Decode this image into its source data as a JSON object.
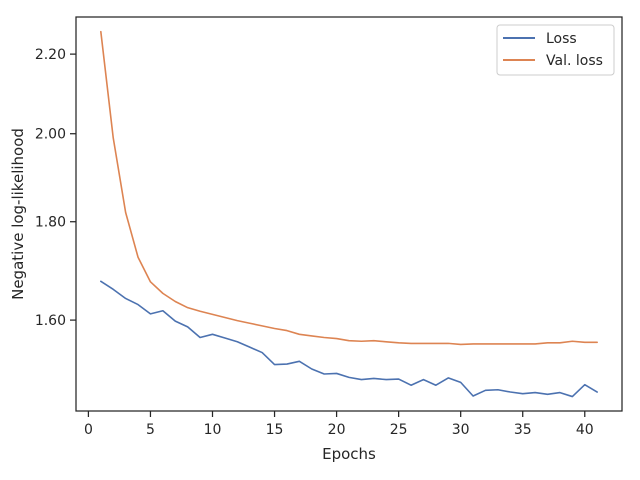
{
  "chart_data": {
    "type": "line",
    "title": "",
    "xlabel": "Epochs",
    "ylabel": "Negative log-likelihood",
    "yscale": "log",
    "xlim": [
      -1,
      43
    ],
    "ylim": [
      1.435,
      2.3
    ],
    "x_ticks": [
      0,
      5,
      10,
      15,
      20,
      25,
      30,
      35,
      40
    ],
    "x_tick_labels": [
      "0",
      "5",
      "10",
      "15",
      "20",
      "25",
      "30",
      "35",
      "40"
    ],
    "y_ticks": [
      1.6,
      1.8,
      2.0,
      2.2
    ],
    "y_tick_labels": [
      "1.60",
      "1.80",
      "2.00",
      "2.20"
    ],
    "grid": false,
    "legend_position": "top-right",
    "x": [
      1,
      2,
      3,
      4,
      5,
      6,
      7,
      8,
      9,
      10,
      11,
      12,
      13,
      14,
      15,
      16,
      17,
      18,
      19,
      20,
      21,
      22,
      23,
      24,
      25,
      26,
      27,
      28,
      29,
      30,
      31,
      32,
      33,
      34,
      35,
      36,
      37,
      38,
      39,
      40,
      41
    ],
    "series": [
      {
        "name": "Loss",
        "color": "#4c72b0",
        "values": [
          1.676,
          1.66,
          1.642,
          1.63,
          1.612,
          1.618,
          1.598,
          1.587,
          1.567,
          1.573,
          1.566,
          1.559,
          1.549,
          1.539,
          1.517,
          1.518,
          1.523,
          1.509,
          1.5,
          1.501,
          1.494,
          1.49,
          1.492,
          1.49,
          1.491,
          1.48,
          1.49,
          1.48,
          1.493,
          1.485,
          1.461,
          1.471,
          1.472,
          1.468,
          1.465,
          1.467,
          1.464,
          1.467,
          1.46,
          1.481,
          1.468
        ]
      },
      {
        "name": "Val. loss",
        "color": "#dd8452",
        "values": [
          2.26,
          1.99,
          1.82,
          1.725,
          1.675,
          1.652,
          1.636,
          1.624,
          1.617,
          1.611,
          1.605,
          1.599,
          1.594,
          1.589,
          1.584,
          1.58,
          1.573,
          1.57,
          1.567,
          1.565,
          1.561,
          1.56,
          1.561,
          1.559,
          1.557,
          1.556,
          1.556,
          1.556,
          1.556,
          1.554,
          1.555,
          1.555,
          1.555,
          1.555,
          1.555,
          1.555,
          1.557,
          1.557,
          1.56,
          1.558,
          1.558
        ]
      }
    ]
  }
}
